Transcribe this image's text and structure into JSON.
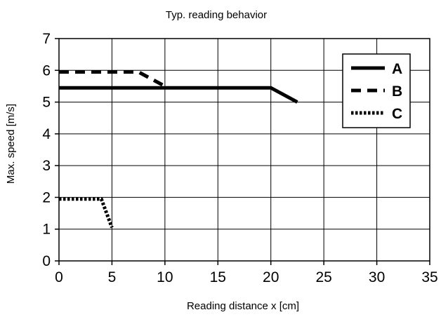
{
  "chart_data": {
    "type": "line",
    "title": "Typ. reading behavior",
    "xlabel": "Reading distance x [cm]",
    "ylabel": "Max. speed [m/s]",
    "xlim": [
      0,
      35
    ],
    "ylim": [
      0,
      7
    ],
    "x_ticks": [
      "0",
      "5",
      "10",
      "15",
      "20",
      "25",
      "30",
      "35"
    ],
    "y_ticks": [
      "0",
      "1",
      "2",
      "3",
      "4",
      "5",
      "6",
      "7"
    ],
    "grid": true,
    "legend_position": "top-right",
    "series": [
      {
        "name": "A",
        "style": "solid",
        "color": "#000000",
        "x": [
          0,
          20,
          22.5
        ],
        "y": [
          5.45,
          5.45,
          5.0
        ]
      },
      {
        "name": "B",
        "style": "dashed",
        "color": "#000000",
        "x": [
          0,
          7.5,
          10
        ],
        "y": [
          5.95,
          5.95,
          5.5
        ]
      },
      {
        "name": "C",
        "style": "dotted",
        "color": "#000000",
        "x": [
          0,
          4,
          5
        ],
        "y": [
          1.95,
          1.95,
          1.05
        ]
      }
    ]
  }
}
